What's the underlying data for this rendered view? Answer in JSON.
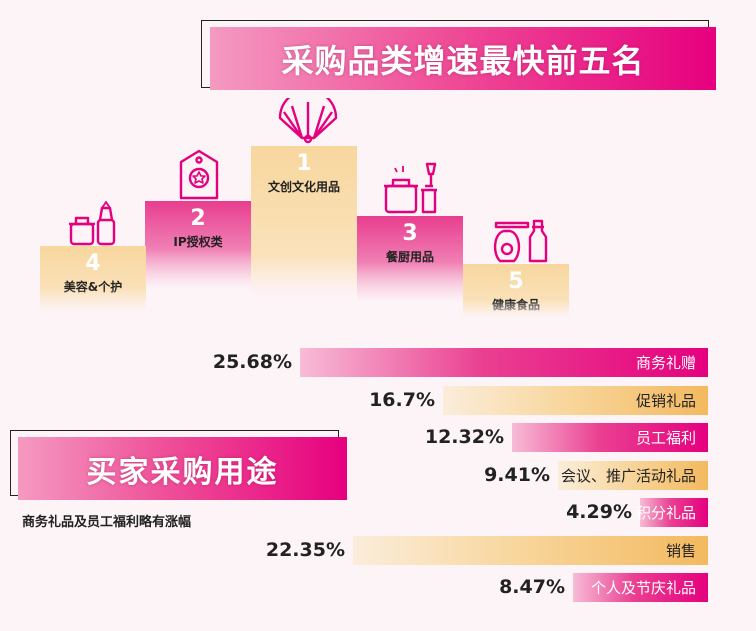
{
  "top_title": "采购品类增速最快前五名",
  "bottom_title": "买家采购用途",
  "subtitle": "商务礼品及员工福利略有涨幅",
  "colors": {
    "pink": "#e5007e",
    "gold": "#f3b95f",
    "background": "#fdf4f7"
  },
  "podium": [
    {
      "rank": "1",
      "label": "文创文化用品",
      "icon": "folding-fan-icon"
    },
    {
      "rank": "2",
      "label": "IP授权类",
      "icon": "award-tag-icon"
    },
    {
      "rank": "3",
      "label": "餐厨用品",
      "icon": "kitchenware-icon"
    },
    {
      "rank": "4",
      "label": "美容&个护",
      "icon": "cosmetics-icon"
    },
    {
      "rank": "5",
      "label": "健康食品",
      "icon": "health-food-icon"
    }
  ],
  "chart_data": {
    "type": "bar",
    "orientation": "horizontal",
    "categories": [
      "商务礼赠",
      "促销礼品",
      "员工福利",
      "会议、推广活动礼品",
      "积分礼品",
      "销售",
      "个人及节庆礼品"
    ],
    "values": [
      25.68,
      16.7,
      12.32,
      9.41,
      4.29,
      22.35,
      8.47
    ],
    "value_labels": [
      "25.68%",
      "16.7%",
      "12.32%",
      "9.41%",
      "4.29%",
      "22.35%",
      "8.47%"
    ],
    "bar_colors": [
      "pink",
      "gold",
      "pink",
      "gold",
      "pink",
      "gold",
      "pink"
    ],
    "unit": "%"
  }
}
